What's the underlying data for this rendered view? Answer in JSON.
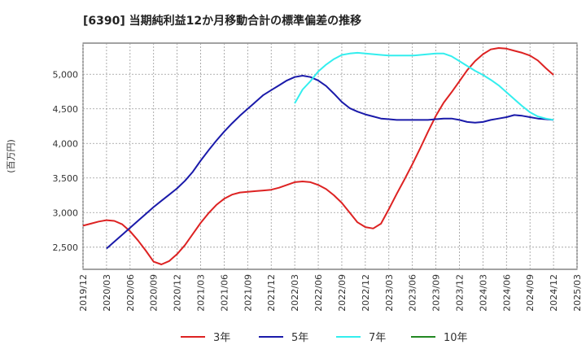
{
  "chart_data": {
    "type": "line",
    "title": "[6390]  当期純利益12か月移動合計の標準偏差の推移",
    "ylabel": "(百万円)",
    "xlabel": "",
    "x_ticks": [
      "2019/12",
      "2020/03",
      "2020/06",
      "2020/09",
      "2020/12",
      "2021/03",
      "2021/06",
      "2021/09",
      "2021/12",
      "2022/03",
      "2022/06",
      "2022/09",
      "2022/12",
      "2023/03",
      "2023/06",
      "2023/09",
      "2023/12",
      "2024/03",
      "2024/06",
      "2024/09",
      "2024/12",
      "2025/03"
    ],
    "y_ticks": [
      "2,500",
      "3,000",
      "3,500",
      "4,000",
      "4,500",
      "5,000"
    ],
    "y_tick_values": [
      2500,
      3000,
      3500,
      4000,
      4500,
      5000
    ],
    "ylim": [
      2180,
      5450
    ],
    "grid": true,
    "legend_position": "bottom",
    "series": [
      {
        "name": "3年",
        "color": "#dd2222",
        "x": [
          "2019/12",
          "2020/01",
          "2020/02",
          "2020/03",
          "2020/04",
          "2020/05",
          "2020/06",
          "2020/07",
          "2020/08",
          "2020/09",
          "2020/10",
          "2020/11",
          "2020/12",
          "2021/01",
          "2021/02",
          "2021/03",
          "2021/04",
          "2021/05",
          "2021/06",
          "2021/07",
          "2021/08",
          "2021/09",
          "2021/10",
          "2021/11",
          "2021/12",
          "2022/01",
          "2022/02",
          "2022/03",
          "2022/04",
          "2022/05",
          "2022/06",
          "2022/07",
          "2022/08",
          "2022/09",
          "2022/10",
          "2022/11",
          "2022/12",
          "2023/01",
          "2023/02",
          "2023/03",
          "2023/04",
          "2023/05",
          "2023/06",
          "2023/07",
          "2023/08",
          "2023/09",
          "2023/10",
          "2023/11",
          "2023/12",
          "2024/01",
          "2024/02",
          "2024/03",
          "2024/04",
          "2024/05",
          "2024/06",
          "2024/07",
          "2024/08",
          "2024/09",
          "2024/10",
          "2024/11",
          "2024/12"
        ],
        "values": [
          2810,
          2840,
          2870,
          2890,
          2880,
          2830,
          2730,
          2600,
          2450,
          2290,
          2250,
          2300,
          2400,
          2530,
          2690,
          2850,
          2990,
          3110,
          3200,
          3260,
          3290,
          3300,
          3310,
          3320,
          3330,
          3360,
          3400,
          3440,
          3450,
          3440,
          3400,
          3340,
          3250,
          3140,
          3000,
          2860,
          2790,
          2770,
          2840,
          3050,
          3270,
          3480,
          3700,
          3930,
          4170,
          4400,
          4590,
          4740,
          4900,
          5060,
          5190,
          5290,
          5360,
          5380,
          5370,
          5340,
          5310,
          5270,
          5200,
          5090,
          4990
        ]
      },
      {
        "name": "5年",
        "color": "#1a1aaa",
        "x": [
          "2020/03",
          "2020/04",
          "2020/05",
          "2020/06",
          "2020/07",
          "2020/08",
          "2020/09",
          "2020/10",
          "2020/11",
          "2020/12",
          "2021/01",
          "2021/02",
          "2021/03",
          "2021/04",
          "2021/05",
          "2021/06",
          "2021/07",
          "2021/08",
          "2021/09",
          "2021/10",
          "2021/11",
          "2021/12",
          "2022/01",
          "2022/02",
          "2022/03",
          "2022/04",
          "2022/05",
          "2022/06",
          "2022/07",
          "2022/08",
          "2022/09",
          "2022/10",
          "2022/11",
          "2022/12",
          "2023/01",
          "2023/02",
          "2023/03",
          "2023/04",
          "2023/05",
          "2023/06",
          "2023/07",
          "2023/08",
          "2023/09",
          "2023/10",
          "2023/11",
          "2023/12",
          "2024/01",
          "2024/02",
          "2024/03",
          "2024/04",
          "2024/05",
          "2024/06",
          "2024/07",
          "2024/08",
          "2024/09",
          "2024/10",
          "2024/11",
          "2024/12"
        ],
        "values": [
          2480,
          2580,
          2680,
          2780,
          2880,
          2980,
          3080,
          3170,
          3260,
          3350,
          3460,
          3590,
          3750,
          3900,
          4040,
          4170,
          4290,
          4400,
          4500,
          4600,
          4700,
          4770,
          4840,
          4910,
          4960,
          4980,
          4960,
          4910,
          4830,
          4720,
          4600,
          4510,
          4460,
          4420,
          4390,
          4360,
          4350,
          4340,
          4340,
          4340,
          4340,
          4340,
          4350,
          4360,
          4360,
          4340,
          4310,
          4300,
          4310,
          4340,
          4360,
          4380,
          4410,
          4400,
          4380,
          4360,
          4350,
          4340
        ]
      },
      {
        "name": "7年",
        "color": "#33eeee",
        "x": [
          "2022/03",
          "2022/04",
          "2022/05",
          "2022/06",
          "2022/07",
          "2022/08",
          "2022/09",
          "2022/10",
          "2022/11",
          "2022/12",
          "2023/01",
          "2023/02",
          "2023/03",
          "2023/04",
          "2023/05",
          "2023/06",
          "2023/07",
          "2023/08",
          "2023/09",
          "2023/10",
          "2023/11",
          "2023/12",
          "2024/01",
          "2024/02",
          "2024/03",
          "2024/04",
          "2024/05",
          "2024/06",
          "2024/07",
          "2024/08",
          "2024/09",
          "2024/10",
          "2024/11",
          "2024/12"
        ],
        "values": [
          4580,
          4780,
          4900,
          5040,
          5140,
          5220,
          5280,
          5300,
          5310,
          5300,
          5290,
          5280,
          5270,
          5270,
          5270,
          5270,
          5280,
          5290,
          5300,
          5300,
          5260,
          5190,
          5120,
          5050,
          4990,
          4920,
          4840,
          4740,
          4640,
          4540,
          4450,
          4390,
          4360,
          4340
        ]
      },
      {
        "name": "10年",
        "color": "#228822",
        "x": [],
        "values": []
      }
    ]
  }
}
